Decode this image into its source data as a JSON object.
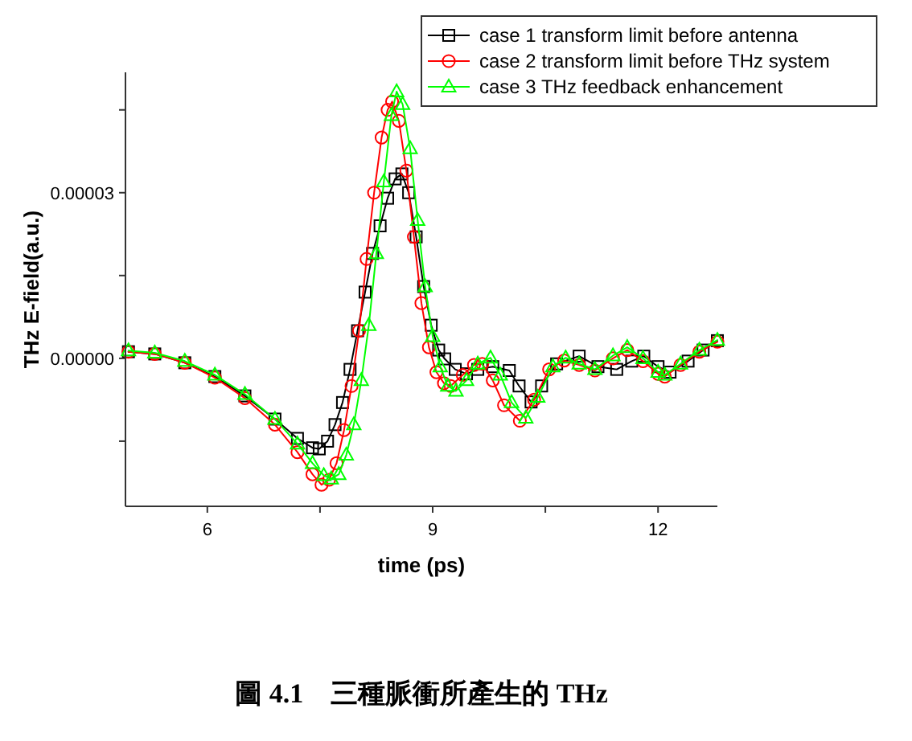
{
  "chart_data": {
    "type": "line",
    "xlabel": "time (ps)",
    "ylabel": "THz E-field(a.u.)",
    "xlim": [
      4.91,
      12.79
    ],
    "ylim": [
      -2.68e-05,
      5.18e-05
    ],
    "xticks": [
      6,
      {
        "value": 7.5,
        "label": null
      },
      9,
      {
        "value": 10.5,
        "label": null
      },
      12
    ],
    "yticks": [
      {
        "value": -1.5e-05,
        "label": null
      },
      {
        "value": 0,
        "label": "0.00000"
      },
      {
        "value": 1.5e-05,
        "label": null
      },
      {
        "value": 3e-05,
        "label": "0.00003"
      },
      {
        "value": 4.5e-05,
        "label": null
      }
    ],
    "legend": "top right",
    "grid": false,
    "line_style": "solid",
    "annotations": [
      "圖 4.1　三種脈衝所產生的 THz"
    ],
    "series": [
      {
        "name": "case 1 transform limit before antenna",
        "color": "#000000",
        "marker": "square",
        "x": [
          4.95,
          5.3,
          5.7,
          6.1,
          6.5,
          6.9,
          7.2,
          7.4,
          7.49,
          7.6,
          7.7,
          7.8,
          7.9,
          8.0,
          8.1,
          8.2,
          8.3,
          8.4,
          8.5,
          8.59,
          8.68,
          8.78,
          8.88,
          8.98,
          9.08,
          9.16,
          9.3,
          9.45,
          9.6,
          9.8,
          10.02,
          10.15,
          10.31,
          10.45,
          10.65,
          10.95,
          11.2,
          11.45,
          11.65,
          11.81,
          12.0,
          12.16,
          12.4,
          12.6,
          12.79
        ],
        "values": [
          1.2e-06,
          8e-07,
          -8e-07,
          -3.3e-06,
          -6.8e-06,
          -1.1e-05,
          -1.45e-05,
          -1.62e-05,
          -1.64e-05,
          -1.5e-05,
          -1.2e-05,
          -8e-06,
          -2e-06,
          5e-06,
          1.2e-05,
          1.9e-05,
          2.4e-05,
          2.9e-05,
          3.25e-05,
          3.34e-05,
          3e-05,
          2.2e-05,
          1.3e-05,
          6e-06,
          1.5e-06,
          -1e-07,
          -2e-06,
          -2.8e-06,
          -2e-06,
          -1.5e-06,
          -2.2e-06,
          -5e-06,
          -7.9e-06,
          -5e-06,
          -1e-06,
          4e-07,
          -1.5e-06,
          -2e-06,
          -5e-07,
          4e-07,
          -1.5e-06,
          -2.5e-06,
          -5e-07,
          1.5e-06,
          3.2e-06
        ]
      },
      {
        "name": "case 2 transform limit before THz system",
        "color": "#ff0000",
        "marker": "circle",
        "x": [
          4.95,
          5.3,
          5.7,
          6.1,
          6.5,
          6.9,
          7.2,
          7.4,
          7.52,
          7.62,
          7.72,
          7.82,
          7.92,
          8.02,
          8.12,
          8.22,
          8.32,
          8.4,
          8.46,
          8.55,
          8.65,
          8.75,
          8.85,
          8.95,
          9.05,
          9.15,
          9.24,
          9.4,
          9.55,
          9.66,
          9.8,
          9.95,
          10.16,
          10.35,
          10.55,
          10.75,
          10.95,
          11.16,
          11.4,
          11.59,
          11.8,
          12.0,
          12.09,
          12.3,
          12.55,
          12.79
        ],
        "values": [
          1.2e-06,
          8e-07,
          -8e-07,
          -3.5e-06,
          -7.2e-06,
          -1.2e-05,
          -1.7e-05,
          -2.1e-05,
          -2.29e-05,
          -2.2e-05,
          -1.9e-05,
          -1.3e-05,
          -5e-06,
          5e-06,
          1.8e-05,
          3e-05,
          4e-05,
          4.5e-05,
          4.65e-05,
          4.3e-05,
          3.4e-05,
          2.2e-05,
          1e-05,
          2e-06,
          -2.5e-06,
          -4.5e-06,
          -5e-06,
          -3e-06,
          -1.2e-06,
          -1e-06,
          -4e-06,
          -8.5e-06,
          -1.13e-05,
          -7.5e-06,
          -2e-06,
          -4e-07,
          -1.2e-06,
          -2.2e-06,
          0.0,
          1.5e-06,
          -5e-07,
          -2.8e-06,
          -3.3e-06,
          -1.2e-06,
          1.2e-06,
          3e-06
        ]
      },
      {
        "name": "case 3 THz feedback enhancement",
        "color": "#00ff00",
        "marker": "triangle",
        "x": [
          4.95,
          5.3,
          5.7,
          6.1,
          6.5,
          6.9,
          7.2,
          7.4,
          7.55,
          7.65,
          7.75,
          7.85,
          7.95,
          8.05,
          8.15,
          8.25,
          8.35,
          8.45,
          8.52,
          8.6,
          8.7,
          8.8,
          8.9,
          9.0,
          9.1,
          9.2,
          9.31,
          9.45,
          9.6,
          9.77,
          9.9,
          10.05,
          10.24,
          10.4,
          10.6,
          10.77,
          10.95,
          11.16,
          11.4,
          11.59,
          11.8,
          12.0,
          12.09,
          12.3,
          12.55,
          12.79
        ],
        "values": [
          1.4e-06,
          1e-06,
          -5e-07,
          -3e-06,
          -6.5e-06,
          -1.1e-05,
          -1.55e-05,
          -1.9e-05,
          -2.12e-05,
          -2.18e-05,
          -2.1e-05,
          -1.75e-05,
          -1.2e-05,
          -4e-06,
          6e-06,
          1.9e-05,
          3.2e-05,
          4.4e-05,
          4.83e-05,
          4.6e-05,
          3.8e-05,
          2.5e-05,
          1.3e-05,
          4e-06,
          -1.5e-06,
          -5e-06,
          -5.9e-06,
          -4e-06,
          -1e-06,
          1e-07,
          -3e-06,
          -8e-06,
          -1.08e-05,
          -7e-06,
          -1.5e-06,
          1e-07,
          -1e-06,
          -2e-06,
          5e-07,
          2e-06,
          0.0,
          -2.5e-06,
          -3e-06,
          -1e-06,
          1.5e-06,
          3.3e-06
        ]
      }
    ]
  }
}
